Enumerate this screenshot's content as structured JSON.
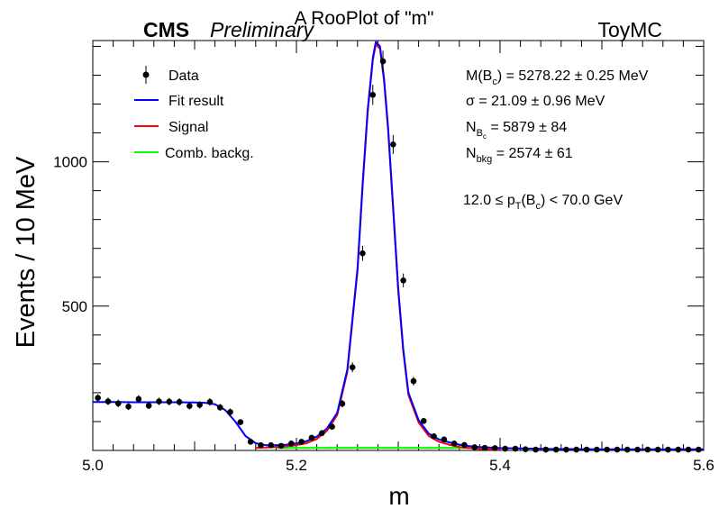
{
  "header": {
    "title": "A RooPlot of \"m\"",
    "experiment": "CMS",
    "status": "Preliminary",
    "sample": "ToyMC"
  },
  "legend": {
    "data": "Data",
    "fit": "Fit result",
    "signal": "Signal",
    "background": "Comb. backg."
  },
  "stats": {
    "mass": "5278.22 ± 0.25 MeV",
    "mass_label_main": "M(B",
    "mass_label_sub": "c",
    "mass_label_close": ")",
    "sigma": "21.09 ± 0.96 MeV",
    "sigma_label": "σ",
    "nsig_label_main": "N",
    "nsig_label_sub": "B",
    "nsig_label_subsub": "c",
    "nsig": "5879 ± 84",
    "nbkg_label_main": "N",
    "nbkg_label_sub": "bkg",
    "nbkg": "2574 ± 61",
    "pt_low": "12.0 ≤ p",
    "pt_sub": "T",
    "pt_mid": "(B",
    "pt_midsub": "c",
    "pt_high": ") < 70.0 GeV"
  },
  "colors": {
    "data": "#000000",
    "fit": "#0000ff",
    "signal": "#ff0000",
    "background": "#00ff00",
    "frame": "#000000"
  },
  "chart_data": {
    "type": "scatter",
    "xlabel": "m",
    "ylabel": "Events / 10 MeV",
    "xlim": [
      5.0,
      5.6
    ],
    "ylim": [
      0,
      1420
    ],
    "xticks": [
      "5.0",
      "5.2",
      "5.4",
      "5.6"
    ],
    "yticks": [
      "500",
      "1000"
    ],
    "legend_position": "top-left",
    "grid": false,
    "series": [
      {
        "name": "Data",
        "style": "points",
        "x": [
          5.005,
          5.015,
          5.025,
          5.035,
          5.045,
          5.055,
          5.065,
          5.075,
          5.085,
          5.095,
          5.105,
          5.115,
          5.125,
          5.135,
          5.145,
          5.155,
          5.165,
          5.175,
          5.185,
          5.195,
          5.205,
          5.215,
          5.225,
          5.235,
          5.245,
          5.255,
          5.265,
          5.275,
          5.285,
          5.295,
          5.305,
          5.315,
          5.325,
          5.335,
          5.345,
          5.355,
          5.365,
          5.375,
          5.385,
          5.395,
          5.405,
          5.415,
          5.425,
          5.435,
          5.445,
          5.455,
          5.465,
          5.475,
          5.485,
          5.495,
          5.505,
          5.515,
          5.525,
          5.535,
          5.545,
          5.555,
          5.565,
          5.575,
          5.585,
          5.595
        ],
        "y": [
          182,
          170,
          163,
          152,
          178,
          155,
          170,
          169,
          168,
          154,
          158,
          168,
          149,
          133,
          98,
          30,
          18,
          18,
          16,
          24,
          30,
          44,
          60,
          82,
          162,
          288,
          683,
          1232,
          1348,
          1060,
          589,
          240,
          102,
          49,
          38,
          24,
          19,
          11,
          9,
          8,
          6,
          6,
          4,
          3,
          3,
          3,
          3,
          3,
          3,
          3,
          3,
          3,
          3,
          3,
          3,
          3,
          3,
          3,
          3,
          3
        ],
        "errors": [
          13,
          13,
          13,
          12,
          13,
          12,
          13,
          13,
          13,
          12,
          13,
          13,
          12,
          12,
          10,
          5,
          4,
          4,
          4,
          5,
          5,
          7,
          8,
          9,
          13,
          17,
          26,
          35,
          37,
          33,
          24,
          15,
          10,
          7,
          6,
          5,
          4,
          3,
          3,
          3,
          2,
          2,
          2,
          2,
          2,
          2,
          2,
          2,
          2,
          2,
          2,
          2,
          2,
          2,
          2,
          2,
          2,
          2,
          2,
          2
        ]
      },
      {
        "name": "Fit result",
        "style": "line",
        "x": [
          5.0,
          5.02,
          5.04,
          5.06,
          5.08,
          5.1,
          5.11,
          5.12,
          5.13,
          5.14,
          5.15,
          5.16,
          5.17,
          5.18,
          5.19,
          5.2,
          5.21,
          5.22,
          5.23,
          5.24,
          5.25,
          5.26,
          5.265,
          5.27,
          5.275,
          5.278,
          5.282,
          5.286,
          5.29,
          5.295,
          5.3,
          5.305,
          5.31,
          5.32,
          5.33,
          5.34,
          5.35,
          5.36,
          5.37,
          5.38,
          5.4,
          5.45,
          5.5,
          5.6
        ],
        "y": [
          168,
          168,
          167,
          167,
          167,
          166,
          165,
          160,
          140,
          100,
          50,
          25,
          18,
          18,
          20,
          24,
          32,
          48,
          76,
          130,
          280,
          630,
          920,
          1180,
          1360,
          1415,
          1400,
          1290,
          1120,
          840,
          560,
          350,
          200,
          105,
          58,
          38,
          28,
          20,
          15,
          12,
          8,
          5,
          4,
          4
        ]
      },
      {
        "name": "Signal",
        "style": "line",
        "x": [
          5.16,
          5.17,
          5.18,
          5.19,
          5.2,
          5.21,
          5.22,
          5.23,
          5.24,
          5.25,
          5.26,
          5.265,
          5.27,
          5.275,
          5.278,
          5.282,
          5.286,
          5.29,
          5.295,
          5.3,
          5.305,
          5.31,
          5.32,
          5.33,
          5.34,
          5.35,
          5.36,
          5.37,
          5.38,
          5.4
        ],
        "y": [
          9,
          10,
          12,
          14,
          18,
          25,
          40,
          68,
          122,
          272,
          622,
          912,
          1172,
          1352,
          1407,
          1392,
          1282,
          1112,
          832,
          552,
          342,
          192,
          97,
          50,
          30,
          20,
          12,
          8,
          5,
          2
        ]
      },
      {
        "name": "Comb. backg.",
        "style": "line",
        "x": [
          5.18,
          5.3,
          5.37
        ],
        "y": [
          9,
          9,
          9
        ]
      }
    ]
  }
}
